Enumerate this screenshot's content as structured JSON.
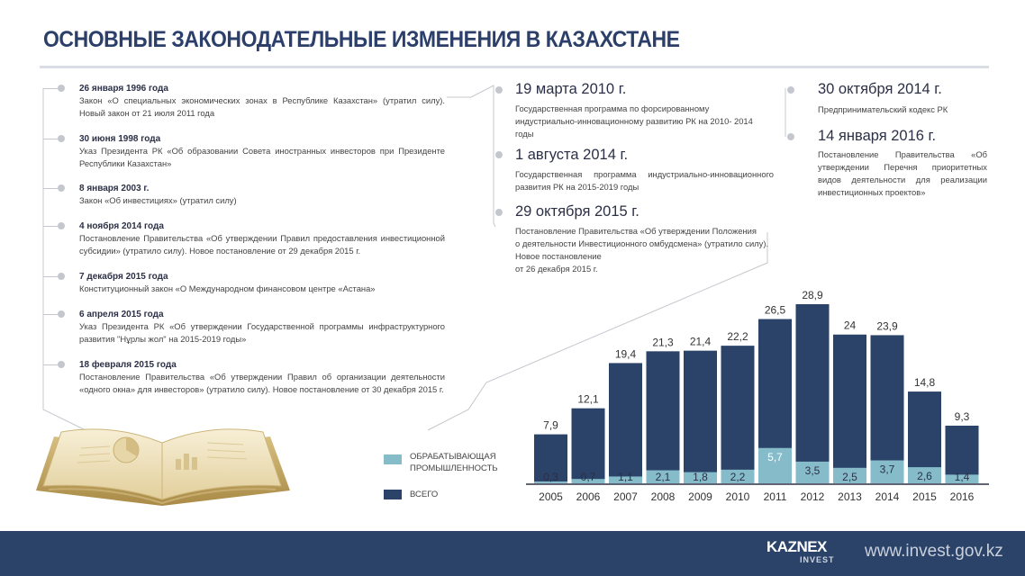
{
  "title": "ОСНОВНЫЕ ЗАКОНОДАТЕЛЬНЫЕ ИЗМЕНЕНИЯ В КАЗАХСТАНЕ",
  "left_events": [
    {
      "date": "26 января 1996 года",
      "desc": "Закон «О специальных экономических зонах в Республике Казахстан» (утратил силу). Новый закон от 21 июля 2011 года"
    },
    {
      "date": "30 июня 1998 года",
      "desc": "Указ Президента РК «Об образовании Совета иностранных инвесторов при Президенте Республики Казахстан»"
    },
    {
      "date": "8 января 2003 г.",
      "desc": "Закон «Об инвестициях» (утратил силу)"
    },
    {
      "date": "4 ноября 2014 года",
      "desc": "Постановление Правительства «Об утверждении Правил предоставления инвестиционной субсидии» (утратило силу). Новое постановление от 29 декабря 2015 г."
    },
    {
      "date": "7 декабря 2015 года",
      "desc": "Конституционный закон «О Международном финансовом центре «Астана»"
    },
    {
      "date": "6 апреля 2015 года",
      "desc": "Указ Президента РК «Об утверждении Государственной программы инфраструктурного развития \"Нұрлы жол\" на 2015-2019 годы»"
    },
    {
      "date": "18 февраля 2015 года",
      "desc": "Постановление Правительства «Об утверждении Правил об организации деятельности «одного окна» для инвесторов» (утратило силу). Новое постановление от 30 декабря 2015 г."
    }
  ],
  "middle_events": [
    {
      "date": "19 марта 2010 г.",
      "desc": "Государственная программа по форсированному индустриально-инновационному развитию РК на 2010- 2014 годы"
    },
    {
      "date": "1 августа  2014 г.",
      "desc": "Государственная программа индустриально-инновационного развития РК на 2015-2019 годы"
    },
    {
      "date": "29 октября 2015 г.",
      "desc_lines": [
        "Постановление Правительства «Об утверждении Положения",
        "о деятельности Инвестиционного омбудсмена» (утратило силу).",
        "Новое постановление",
        "от 26 декабря 2015 г."
      ]
    }
  ],
  "right_events": [
    {
      "date": "30 октября 2014 г.",
      "desc": "Предпринимательский кодекс РК"
    },
    {
      "date": "14 января 2016 г.",
      "desc": "Постановление Правительства «Об утверждении Перечня приоритетных видов деятельности для реализации инвестиционных проектов»"
    }
  ],
  "legend": {
    "manufacturing": "ОБРАБАТЫВАЮЩАЯ ПРОМЫШЛЕННОСТЬ",
    "total": "ВСЕГО"
  },
  "colors": {
    "total": "#2b4269",
    "manufacturing": "#86bcc9",
    "title": "#2b3f6a"
  },
  "chart_data": {
    "type": "bar",
    "categories": [
      "2005",
      "2006",
      "2007",
      "2008",
      "2009",
      "2010",
      "2011",
      "2012",
      "2013",
      "2014",
      "2015",
      "2016"
    ],
    "series": [
      {
        "name": "ВСЕГО",
        "values": [
          7.9,
          12.1,
          19.4,
          21.3,
          21.4,
          22.2,
          26.5,
          28.9,
          24,
          23.9,
          14.8,
          9.3
        ],
        "labels": [
          "7,9",
          "12,1",
          "19,4",
          "21,3",
          "21,4",
          "22,2",
          "26,5",
          "28,9",
          "24",
          "23,9",
          "14,8",
          "9,3"
        ]
      },
      {
        "name": "ОБРАБАТЫВАЮЩАЯ ПРОМЫШЛЕННОСТЬ",
        "values": [
          0.3,
          0.7,
          1.1,
          2.1,
          1.8,
          2.2,
          5.7,
          3.5,
          2.5,
          3.7,
          2.6,
          1.4
        ],
        "labels": [
          "0,3",
          "0,7",
          "1,1",
          "2,1",
          "1,8",
          "2,2",
          "5,7",
          "3,5",
          "2,5",
          "3,7",
          "2,6",
          "1,4"
        ]
      }
    ],
    "title": "",
    "xlabel": "",
    "ylabel": "",
    "ylim": [
      0,
      30
    ]
  },
  "footer": {
    "logo": "KAZNEX",
    "logo_sub": "INVEST",
    "site": "www.invest.gov.kz"
  }
}
